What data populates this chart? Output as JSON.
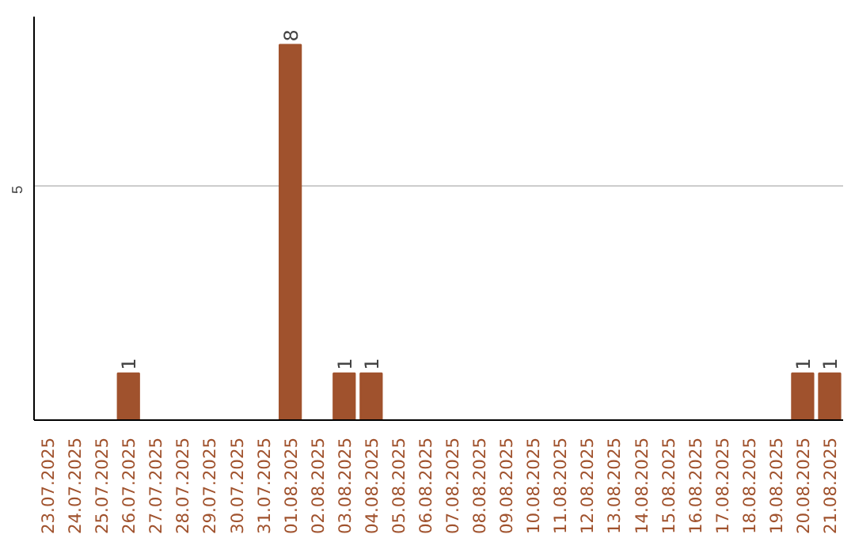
{
  "chart_data": {
    "type": "bar",
    "categories": [
      "23.07.2025",
      "24.07.2025",
      "25.07.2025",
      "26.07.2025",
      "27.07.2025",
      "28.07.2025",
      "29.07.2025",
      "30.07.2025",
      "31.07.2025",
      "01.08.2025",
      "02.08.2025",
      "03.08.2025",
      "04.08.2025",
      "05.08.2025",
      "06.08.2025",
      "07.08.2025",
      "08.08.2025",
      "09.08.2025",
      "10.08.2025",
      "11.08.2025",
      "12.08.2025",
      "13.08.2025",
      "14.08.2025",
      "15.08.2025",
      "16.08.2025",
      "17.08.2025",
      "18.08.2025",
      "19.08.2025",
      "20.08.2025",
      "21.08.2025"
    ],
    "values": [
      0,
      0,
      0,
      1,
      0,
      0,
      0,
      0,
      0,
      8,
      0,
      1,
      1,
      0,
      0,
      0,
      0,
      0,
      0,
      0,
      0,
      0,
      0,
      0,
      0,
      0,
      0,
      0,
      1,
      1
    ],
    "color": "#a0522d",
    "value_labels": [
      null,
      null,
      null,
      "1",
      null,
      null,
      null,
      null,
      null,
      "8",
      null,
      "1",
      "1",
      null,
      null,
      null,
      null,
      null,
      null,
      null,
      null,
      null,
      null,
      null,
      null,
      null,
      null,
      null,
      "1",
      "1"
    ],
    "ylim": [
      0,
      8.6
    ],
    "yticks": [
      5
    ],
    "grid": "y"
  }
}
